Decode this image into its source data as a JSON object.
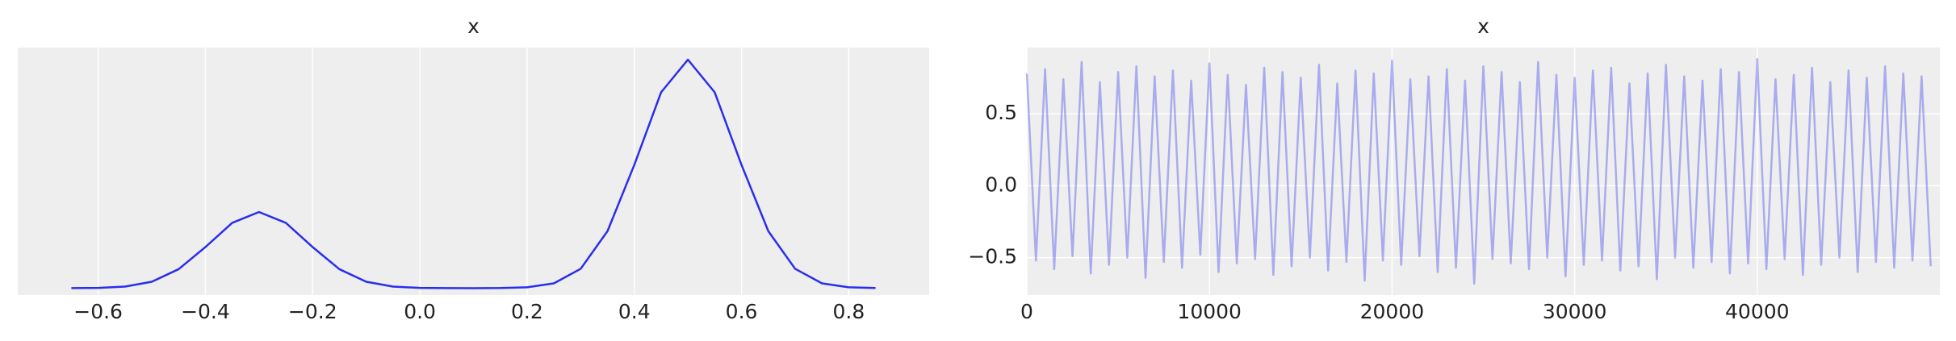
{
  "chart_data": [
    {
      "type": "line",
      "title": "x",
      "color": "#2a2eec",
      "opacity": 1,
      "grid": "x",
      "x": [
        -0.65,
        -0.6,
        -0.55,
        -0.5,
        -0.45,
        -0.4,
        -0.35,
        -0.3,
        -0.25,
        -0.2,
        -0.15,
        -0.1,
        -0.05,
        0,
        0.05,
        0.1,
        0.15,
        0.2,
        0.25,
        0.3,
        0.35,
        0.4,
        0.45,
        0.5,
        0.55,
        0.6,
        0.65,
        0.7,
        0.75,
        0.8,
        0.85
      ],
      "values": [
        0.001,
        0.004,
        0.023,
        0.094,
        0.276,
        0.598,
        0.95,
        1.108,
        0.95,
        0.598,
        0.276,
        0.094,
        0.023,
        0.004,
        0.001,
        0.0002,
        0.002,
        0.013,
        0.07,
        0.282,
        0.829,
        1.793,
        2.849,
        3.324,
        2.849,
        1.793,
        0.829,
        0.282,
        0.07,
        0.013,
        0.002
      ],
      "xlim": [
        -0.75,
        0.95
      ],
      "ylim": [
        -0.1,
        3.5
      ],
      "xticks": [
        {
          "value": -0.6,
          "label": "−0.6"
        },
        {
          "value": -0.4,
          "label": "−0.4"
        },
        {
          "value": -0.2,
          "label": "−0.2"
        },
        {
          "value": 0,
          "label": "0.0"
        },
        {
          "value": 0.2,
          "label": "0.2"
        },
        {
          "value": 0.4,
          "label": "0.4"
        },
        {
          "value": 0.6,
          "label": "0.6"
        },
        {
          "value": 0.8,
          "label": "0.8"
        }
      ]
    },
    {
      "type": "line",
      "title": "x",
      "color": "#2a2eec",
      "opacity": 0.35,
      "grid": "both",
      "x": [
        0,
        500,
        1000,
        1500,
        2000,
        2500,
        3000,
        3500,
        4000,
        4500,
        5000,
        5500,
        6000,
        6500,
        7000,
        7500,
        8000,
        8500,
        9000,
        9500,
        10000,
        10500,
        11000,
        11500,
        12000,
        12500,
        13000,
        13500,
        14000,
        14500,
        15000,
        15500,
        16000,
        16500,
        17000,
        17500,
        18000,
        18500,
        19000,
        19500,
        20000,
        20500,
        21000,
        21500,
        22000,
        22500,
        23000,
        23500,
        24000,
        24500,
        25000,
        25500,
        26000,
        26500,
        27000,
        27500,
        28000,
        28500,
        29000,
        29500,
        30000,
        30500,
        31000,
        31500,
        32000,
        32500,
        33000,
        33500,
        34000,
        34500,
        35000,
        35500,
        36000,
        36500,
        37000,
        37500,
        38000,
        38500,
        39000,
        39500,
        40000,
        40500,
        41000,
        41500,
        42000,
        42500,
        43000,
        43500,
        44000,
        44500,
        45000,
        45500,
        46000,
        46500,
        47000,
        47500,
        48000,
        48500,
        49000,
        49500
      ],
      "values": [
        0.78,
        -0.52,
        0.81,
        -0.58,
        0.74,
        -0.49,
        0.86,
        -0.61,
        0.72,
        -0.55,
        0.79,
        -0.5,
        0.83,
        -0.64,
        0.76,
        -0.53,
        0.8,
        -0.57,
        0.73,
        -0.48,
        0.85,
        -0.6,
        0.77,
        -0.54,
        0.7,
        -0.51,
        0.82,
        -0.62,
        0.79,
        -0.56,
        0.75,
        -0.5,
        0.84,
        -0.59,
        0.71,
        -0.53,
        0.8,
        -0.66,
        0.78,
        -0.52,
        0.87,
        -0.55,
        0.74,
        -0.49,
        0.76,
        -0.6,
        0.81,
        -0.57,
        0.73,
        -0.68,
        0.83,
        -0.51,
        0.79,
        -0.54,
        0.72,
        -0.58,
        0.86,
        -0.5,
        0.77,
        -0.63,
        0.75,
        -0.55,
        0.8,
        -0.52,
        0.82,
        -0.59,
        0.71,
        -0.56,
        0.78,
        -0.65,
        0.84,
        -0.5,
        0.76,
        -0.57,
        0.73,
        -0.53,
        0.81,
        -0.61,
        0.79,
        -0.54,
        0.88,
        -0.58,
        0.74,
        -0.51,
        0.77,
        -0.62,
        0.82,
        -0.55,
        0.72,
        -0.5,
        0.8,
        -0.6,
        0.75,
        -0.53,
        0.83,
        -0.57,
        0.78,
        -0.52,
        0.76,
        -0.56
      ],
      "xlim": [
        0,
        50000
      ],
      "ylim": [
        -0.76,
        0.96
      ],
      "xticks": [
        0,
        10000,
        20000,
        30000,
        40000
      ],
      "yticks": [
        {
          "value": -0.5,
          "label": "−0.5"
        },
        {
          "value": 0,
          "label": "0.0"
        },
        {
          "value": 0.5,
          "label": "0.5"
        }
      ]
    }
  ]
}
